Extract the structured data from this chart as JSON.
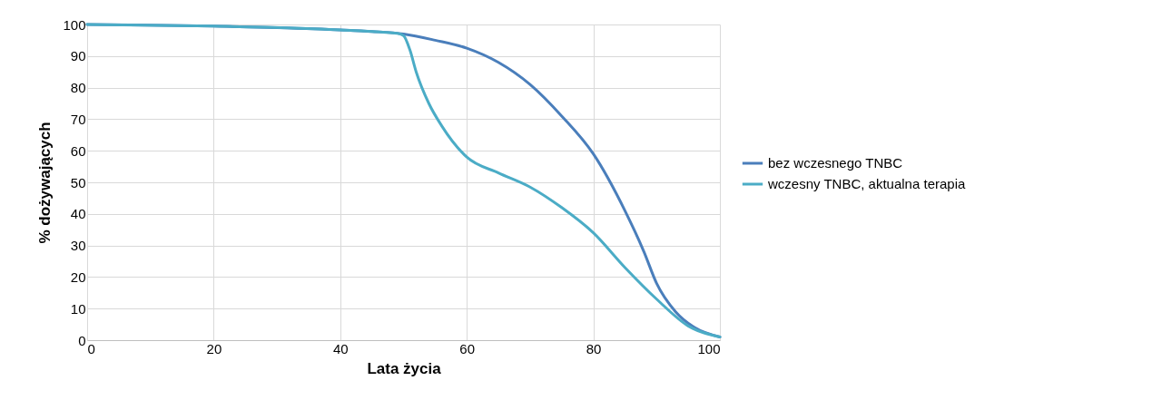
{
  "chart_data": {
    "type": "line",
    "xlabel": "Lata życia",
    "ylabel": "% dożywających",
    "xlim": [
      0,
      100
    ],
    "xticks": [
      0,
      20,
      40,
      60,
      80,
      100
    ],
    "ylim": [
      0,
      100
    ],
    "yticks": [
      0,
      10,
      20,
      30,
      40,
      50,
      60,
      70,
      80,
      90,
      100
    ],
    "grid": true,
    "legend": "right",
    "line_style": "solid",
    "marker": "none",
    "series": [
      {
        "name": "bez wczesnego TNBC",
        "color": "#4a7ebb",
        "x": [
          0,
          10,
          20,
          30,
          40,
          45,
          50,
          55,
          60,
          65,
          70,
          75,
          80,
          85,
          88,
          90,
          93,
          96,
          100
        ],
        "values": [
          100,
          99.8,
          99.5,
          99,
          98.3,
          97.8,
          97,
          95,
          92.5,
          88,
          81,
          71,
          59,
          41,
          28,
          18,
          9,
          4,
          1
        ]
      },
      {
        "name": "wczesny TNBC, aktualna terapia",
        "color": "#4bacc6",
        "x": [
          0,
          20,
          40,
          49,
          50,
          51,
          52,
          54,
          56,
          60,
          65,
          70,
          75,
          80,
          85,
          90,
          95,
          100
        ],
        "values": [
          100,
          99.5,
          98.3,
          97.2,
          96.5,
          92,
          85,
          75,
          68,
          58,
          53,
          48.5,
          42,
          34,
          23,
          13,
          4.5,
          1
        ]
      }
    ]
  }
}
